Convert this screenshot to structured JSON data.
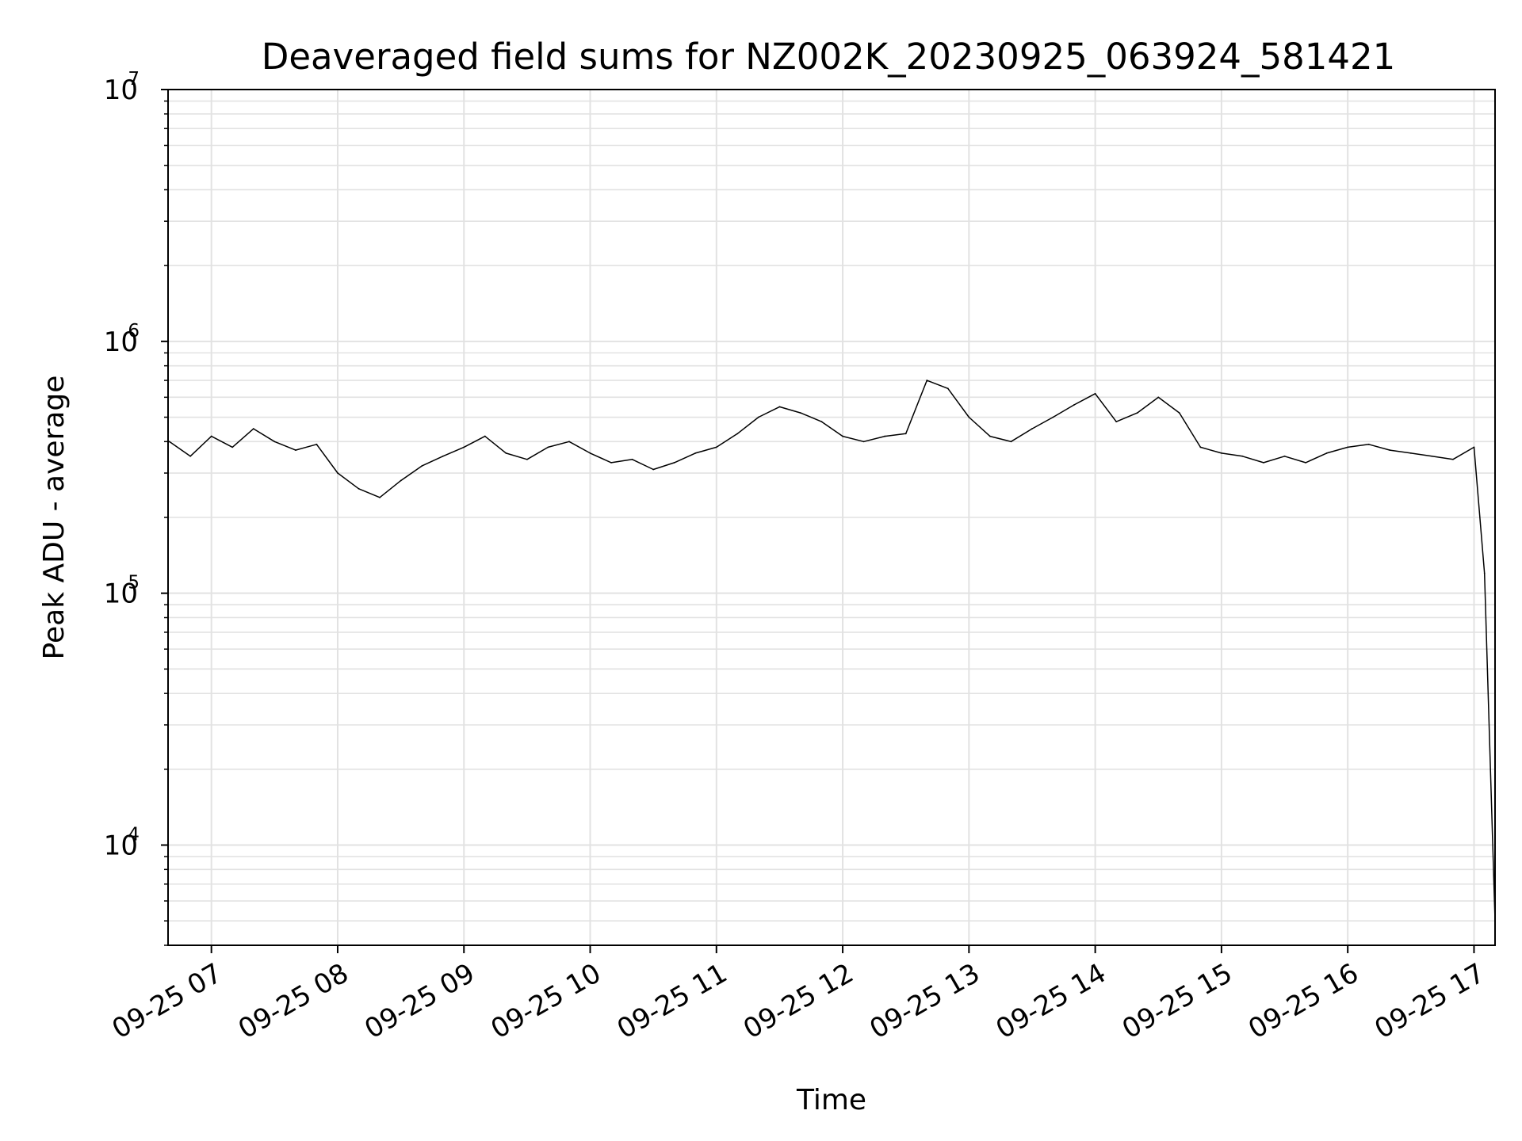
{
  "chart_data": {
    "type": "line",
    "title": "Deaveraged field sums for NZ002K_20230925_063924_581421",
    "xlabel": "Time",
    "ylabel": "Peak ADU - average",
    "yscale": "log",
    "ylim": [
      4000,
      10000000
    ],
    "y_ticks": [
      {
        "base": "10",
        "exp": "4",
        "value": 10000
      },
      {
        "base": "10",
        "exp": "5",
        "value": 100000
      },
      {
        "base": "10",
        "exp": "6",
        "value": 1000000
      },
      {
        "base": "10",
        "exp": "7",
        "value": 10000000
      }
    ],
    "xlim": [
      "2023-09-25 06:39:24",
      "2023-09-25 17:10:00"
    ],
    "x_ticks": [
      {
        "label": "09-25 07",
        "value": "2023-09-25 07:00"
      },
      {
        "label": "09-25 08",
        "value": "2023-09-25 08:00"
      },
      {
        "label": "09-25 09",
        "value": "2023-09-25 09:00"
      },
      {
        "label": "09-25 10",
        "value": "2023-09-25 10:00"
      },
      {
        "label": "09-25 11",
        "value": "2023-09-25 11:00"
      },
      {
        "label": "09-25 12",
        "value": "2023-09-25 12:00"
      },
      {
        "label": "09-25 13",
        "value": "2023-09-25 13:00"
      },
      {
        "label": "09-25 14",
        "value": "2023-09-25 14:00"
      },
      {
        "label": "09-25 15",
        "value": "2023-09-25 15:00"
      },
      {
        "label": "09-25 16",
        "value": "2023-09-25 16:00"
      },
      {
        "label": "09-25 17",
        "value": "2023-09-25 17:00"
      }
    ],
    "grid": true,
    "series": [
      {
        "color": "#000000",
        "x": [
          "2023-09-25 06:40",
          "2023-09-25 06:50",
          "2023-09-25 07:00",
          "2023-09-25 07:10",
          "2023-09-25 07:20",
          "2023-09-25 07:30",
          "2023-09-25 07:40",
          "2023-09-25 07:50",
          "2023-09-25 08:00",
          "2023-09-25 08:10",
          "2023-09-25 08:20",
          "2023-09-25 08:30",
          "2023-09-25 08:40",
          "2023-09-25 08:50",
          "2023-09-25 09:00",
          "2023-09-25 09:10",
          "2023-09-25 09:20",
          "2023-09-25 09:30",
          "2023-09-25 09:40",
          "2023-09-25 09:50",
          "2023-09-25 10:00",
          "2023-09-25 10:10",
          "2023-09-25 10:20",
          "2023-09-25 10:30",
          "2023-09-25 10:40",
          "2023-09-25 10:50",
          "2023-09-25 11:00",
          "2023-09-25 11:10",
          "2023-09-25 11:20",
          "2023-09-25 11:30",
          "2023-09-25 11:40",
          "2023-09-25 11:50",
          "2023-09-25 12:00",
          "2023-09-25 12:10",
          "2023-09-25 12:20",
          "2023-09-25 12:30",
          "2023-09-25 12:40",
          "2023-09-25 12:50",
          "2023-09-25 13:00",
          "2023-09-25 13:10",
          "2023-09-25 13:20",
          "2023-09-25 13:30",
          "2023-09-25 13:40",
          "2023-09-25 13:50",
          "2023-09-25 14:00",
          "2023-09-25 14:10",
          "2023-09-25 14:20",
          "2023-09-25 14:30",
          "2023-09-25 14:40",
          "2023-09-25 14:50",
          "2023-09-25 15:00",
          "2023-09-25 15:10",
          "2023-09-25 15:20",
          "2023-09-25 15:30",
          "2023-09-25 15:40",
          "2023-09-25 15:50",
          "2023-09-25 16:00",
          "2023-09-25 16:10",
          "2023-09-25 16:20",
          "2023-09-25 16:30",
          "2023-09-25 16:40",
          "2023-09-25 16:50",
          "2023-09-25 17:00",
          "2023-09-25 17:05",
          "2023-09-25 17:10"
        ],
        "values": [
          400000,
          350000,
          420000,
          380000,
          450000,
          400000,
          370000,
          390000,
          300000,
          260000,
          240000,
          280000,
          320000,
          350000,
          380000,
          420000,
          360000,
          340000,
          380000,
          400000,
          360000,
          330000,
          340000,
          310000,
          330000,
          360000,
          380000,
          430000,
          500000,
          550000,
          520000,
          480000,
          420000,
          400000,
          420000,
          430000,
          700000,
          650000,
          500000,
          420000,
          400000,
          450000,
          500000,
          560000,
          620000,
          480000,
          520000,
          600000,
          520000,
          380000,
          360000,
          350000,
          330000,
          350000,
          330000,
          360000,
          380000,
          390000,
          370000,
          360000,
          350000,
          340000,
          380000,
          120000,
          5000
        ]
      }
    ]
  }
}
